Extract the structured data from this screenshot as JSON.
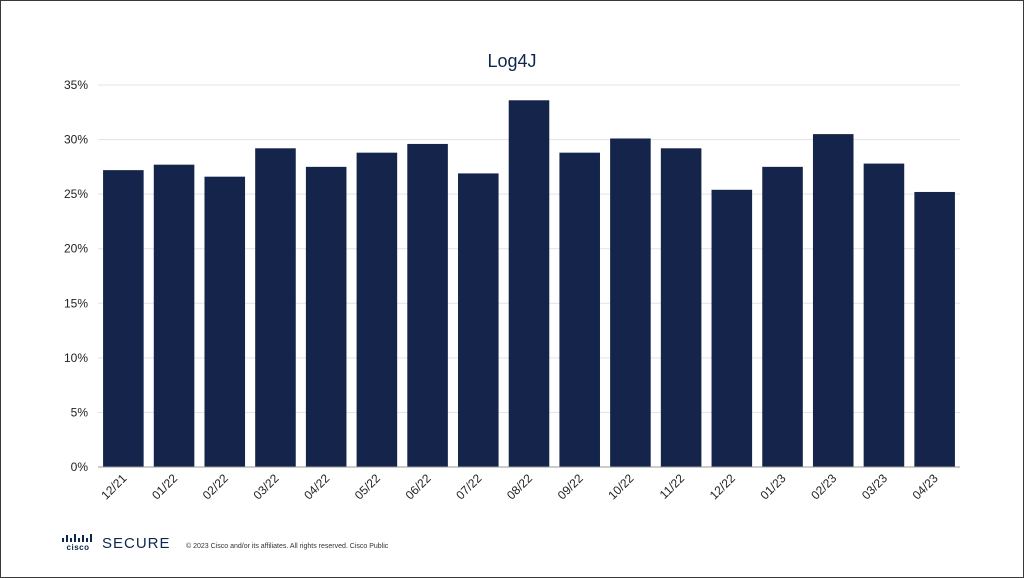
{
  "chart_data": {
    "type": "bar",
    "title": "Log4J",
    "categories": [
      "12/21",
      "01/22",
      "02/22",
      "03/22",
      "04/22",
      "05/22",
      "06/22",
      "07/22",
      "08/22",
      "09/22",
      "10/22",
      "11/22",
      "12/22",
      "01/23",
      "02/23",
      "03/23",
      "04/23"
    ],
    "values": [
      27.2,
      27.7,
      26.6,
      29.2,
      27.5,
      28.8,
      29.6,
      26.9,
      33.6,
      28.8,
      30.1,
      29.2,
      25.4,
      27.5,
      30.5,
      27.8,
      25.2
    ],
    "ylim": [
      0,
      35
    ],
    "yticks": [
      "0%",
      "5%",
      "10%",
      "15%",
      "20%",
      "25%",
      "30%",
      "35%"
    ],
    "ytick_values": [
      0,
      5,
      10,
      15,
      20,
      25,
      30,
      35
    ],
    "bar_color": "#14244a",
    "grid": true
  },
  "footer": {
    "brand_top": "cisco",
    "brand_name": "SECURE",
    "copyright": "© 2023  Cisco and/or its affiliates. All rights reserved.   Cisco Public"
  }
}
